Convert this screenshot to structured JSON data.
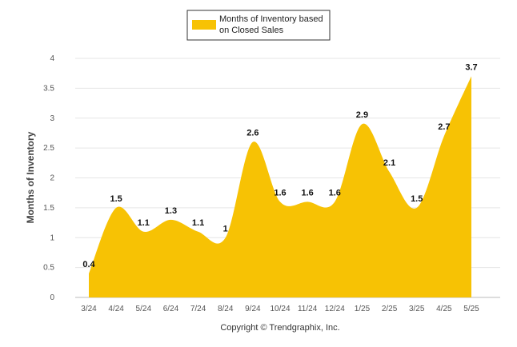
{
  "chart_data": {
    "type": "area",
    "categories": [
      "3/24",
      "4/24",
      "5/24",
      "6/24",
      "7/24",
      "8/24",
      "9/24",
      "10/24",
      "11/24",
      "12/24",
      "1/25",
      "2/25",
      "3/25",
      "4/25",
      "5/25"
    ],
    "series": [
      {
        "name": "Months of Inventory based on Closed Sales",
        "values": [
          0.4,
          1.5,
          1.1,
          1.3,
          1.1,
          1,
          2.6,
          1.6,
          1.6,
          1.6,
          2.9,
          2.1,
          1.5,
          2.7,
          3.7
        ],
        "labels": [
          "0.4",
          "1.5",
          "1.1",
          "1.3",
          "1.1",
          "1",
          "2.6",
          "1.6",
          "1.6",
          "1.6",
          "2.9",
          "2.1",
          "1.5",
          "2.7",
          "3.7"
        ],
        "color": "#F7C204"
      }
    ],
    "ylabel": "Months of Inventory",
    "ylim": [
      0,
      4
    ],
    "yticks": [
      "0",
      "0.5",
      "1",
      "1.5",
      "2",
      "2.5",
      "3",
      "3.5",
      "4"
    ],
    "grid": true,
    "legend": "top-center",
    "credit": "Copyright © Trendgraphix, Inc."
  }
}
